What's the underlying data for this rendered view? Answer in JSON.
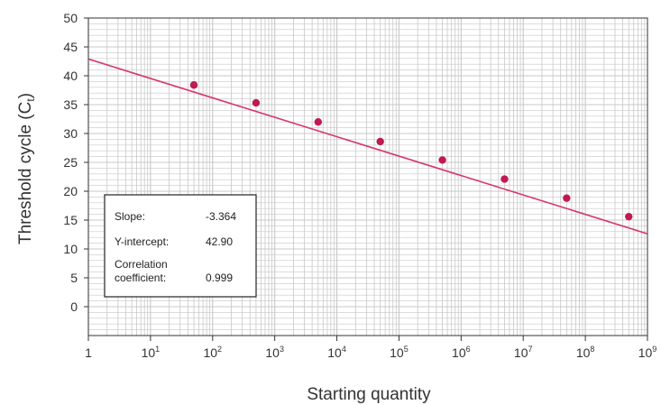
{
  "chart_data": {
    "type": "scatter",
    "xlabel": "Starting quantity",
    "ylabel": "Threshold cycle (C",
    "ylabel_subscript": "t",
    "ylabel_close": ")",
    "x_scale": "log",
    "xlim": [
      1,
      1000000000
    ],
    "ylim": [
      -5,
      50
    ],
    "x_ticks": [
      {
        "base": "1",
        "exp": ""
      },
      {
        "base": "10",
        "exp": "1"
      },
      {
        "base": "10",
        "exp": "2"
      },
      {
        "base": "10",
        "exp": "3"
      },
      {
        "base": "10",
        "exp": "4"
      },
      {
        "base": "10",
        "exp": "5"
      },
      {
        "base": "10",
        "exp": "6"
      },
      {
        "base": "10",
        "exp": "7"
      },
      {
        "base": "10",
        "exp": "8"
      },
      {
        "base": "10",
        "exp": "9"
      }
    ],
    "y_ticks": [
      "0",
      "5",
      "10",
      "15",
      "20",
      "25",
      "30",
      "35",
      "40",
      "45",
      "50"
    ],
    "grid": true,
    "points": [
      {
        "x": 50,
        "y": 38.4
      },
      {
        "x": 500,
        "y": 35.3
      },
      {
        "x": 5000,
        "y": 32.0
      },
      {
        "x": 50000,
        "y": 28.6
      },
      {
        "x": 500000,
        "y": 25.4
      },
      {
        "x": 5000000,
        "y": 22.1
      },
      {
        "x": 50000000,
        "y": 18.8
      },
      {
        "x": 500000000,
        "y": 15.6
      }
    ],
    "fit_line": {
      "slope": -3.364,
      "intercept": 42.9
    },
    "colors": {
      "line": "#d6376a",
      "point": "#c01a4e",
      "grid": "#c8c8c8",
      "axis": "#333333"
    },
    "stats_box": {
      "position": "bottom-left",
      "slope_label": "Slope:",
      "slope_value": "-3.364",
      "intercept_label": "Y-intercept:",
      "intercept_value": "42.90",
      "corr_label_1": "Correlation",
      "corr_label_2": "coefficient:",
      "corr_value": "0.999"
    }
  }
}
